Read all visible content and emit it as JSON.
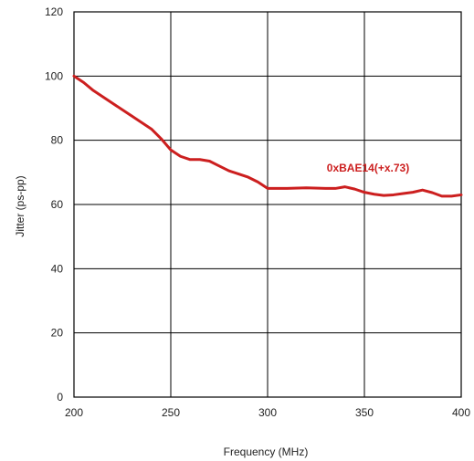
{
  "chart_data": {
    "type": "line",
    "title": "",
    "xlabel": "Frequency (MHz)",
    "ylabel": "Jitter (ps-pp)",
    "xlim": [
      200,
      400
    ],
    "ylim": [
      0,
      120
    ],
    "xticks": [
      200,
      250,
      300,
      350,
      400
    ],
    "yticks": [
      0,
      20,
      40,
      60,
      80,
      100,
      120
    ],
    "grid": true,
    "series": [
      {
        "name": "0xBAE14(+x.73)",
        "color": "#cc1f1f",
        "x": [
          200,
          205,
          210,
          220,
          230,
          240,
          245,
          250,
          255,
          260,
          265,
          270,
          275,
          280,
          285,
          290,
          295,
          300,
          305,
          310,
          320,
          330,
          335,
          340,
          345,
          350,
          355,
          360,
          365,
          370,
          375,
          380,
          385,
          390,
          395,
          400
        ],
        "y": [
          100,
          98,
          95.5,
          91.5,
          87.5,
          83.5,
          80.5,
          77,
          75,
          74,
          74,
          73.5,
          72,
          70.5,
          69.5,
          68.5,
          67,
          65,
          65,
          65,
          65.2,
          65,
          65,
          65.5,
          64.8,
          63.8,
          63.2,
          62.8,
          63,
          63.4,
          63.8,
          64.5,
          63.7,
          62.6,
          62.6,
          63
        ]
      }
    ]
  }
}
